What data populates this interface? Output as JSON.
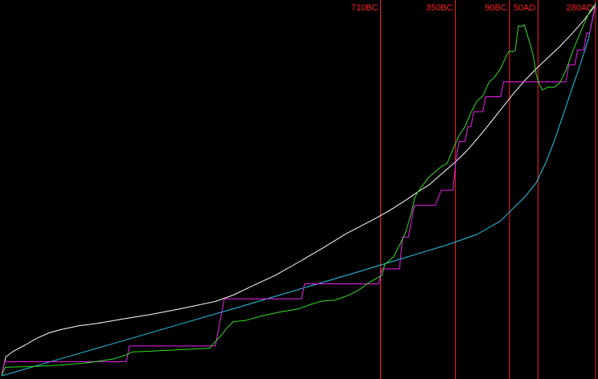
{
  "chart_data": {
    "type": "line",
    "title": "",
    "xlabel": "",
    "ylabel": "",
    "xlim": [
      0,
      100
    ],
    "ylim": [
      0,
      100
    ],
    "grid": false,
    "legend": "none",
    "background": "#000000",
    "markers": [
      {
        "label": "710BC",
        "x": 63.8,
        "color": "#ff2020"
      },
      {
        "label": "350BC",
        "x": 76.4,
        "color": "#ff2020"
      },
      {
        "label": "90BC",
        "x": 85.5,
        "color": "#ff2020"
      },
      {
        "label": "50AD",
        "x": 90.3,
        "color": "#ff2020"
      },
      {
        "label": "280AD",
        "x": 100,
        "color": "#ff2020"
      }
    ],
    "series": [
      {
        "color": "#ffffff",
        "style": "smooth",
        "points": [
          [
            0,
            0.6
          ],
          [
            0.7,
            5.5
          ],
          [
            2,
            7
          ],
          [
            4,
            8.7
          ],
          [
            6,
            10.5
          ],
          [
            8,
            11.9
          ],
          [
            10,
            12.8
          ],
          [
            13,
            13.8
          ],
          [
            16,
            14.4
          ],
          [
            20,
            15.5
          ],
          [
            25,
            16.8
          ],
          [
            30,
            18.3
          ],
          [
            36,
            20.3
          ],
          [
            39,
            22
          ],
          [
            42,
            24.3
          ],
          [
            46,
            27.2
          ],
          [
            50,
            30.8
          ],
          [
            54,
            34.5
          ],
          [
            58,
            38.4
          ],
          [
            62,
            41.7
          ],
          [
            65,
            44.3
          ],
          [
            68,
            47.3
          ],
          [
            70,
            49.5
          ],
          [
            72,
            51.5
          ],
          [
            74,
            54.3
          ],
          [
            76,
            57
          ],
          [
            78,
            60
          ],
          [
            80,
            63.6
          ],
          [
            82,
            67.5
          ],
          [
            84,
            71.5
          ],
          [
            86,
            75.5
          ],
          [
            88,
            79.2
          ],
          [
            90,
            82.5
          ],
          [
            92,
            85.5
          ],
          [
            94,
            88.5
          ],
          [
            96,
            91.8
          ],
          [
            98,
            95.4
          ],
          [
            100,
            99.5
          ]
        ]
      },
      {
        "color": "#22c8e6",
        "style": "smooth",
        "points": [
          [
            0,
            0.4
          ],
          [
            10,
            5
          ],
          [
            20,
            9.6
          ],
          [
            30,
            14.2
          ],
          [
            40,
            18.8
          ],
          [
            50,
            23.5
          ],
          [
            60,
            28.2
          ],
          [
            70,
            33
          ],
          [
            75,
            35.4
          ],
          [
            80,
            38.2
          ],
          [
            84,
            41.8
          ],
          [
            86,
            45
          ],
          [
            88,
            48.1
          ],
          [
            90,
            52
          ],
          [
            91.5,
            57
          ],
          [
            93,
            63
          ],
          [
            94.5,
            70
          ],
          [
            96,
            77
          ],
          [
            97.5,
            84
          ],
          [
            98.8,
            90.5
          ],
          [
            100,
            99.5
          ]
        ]
      },
      {
        "color": "#ee22ee",
        "style": "step",
        "points": [
          [
            0,
            0.5
          ],
          [
            0.5,
            4.2
          ],
          [
            21,
            4.2
          ],
          [
            21.5,
            8.4
          ],
          [
            36,
            8.4
          ],
          [
            36.5,
            12.6
          ],
          [
            37.5,
            21
          ],
          [
            38,
            21
          ],
          [
            38.5,
            21
          ],
          [
            50.5,
            21
          ],
          [
            51,
            25
          ],
          [
            63.5,
            25
          ],
          [
            64,
            29
          ],
          [
            67,
            29
          ],
          [
            67.5,
            37.5
          ],
          [
            68.5,
            37.5
          ],
          [
            69,
            42
          ],
          [
            69.5,
            46
          ],
          [
            73,
            46
          ],
          [
            74,
            50
          ],
          [
            76,
            50
          ],
          [
            76.5,
            58
          ],
          [
            77,
            63
          ],
          [
            78,
            63
          ],
          [
            78.5,
            67
          ],
          [
            79,
            67
          ],
          [
            79.5,
            71
          ],
          [
            81,
            71
          ],
          [
            81.5,
            75
          ],
          [
            84,
            75
          ],
          [
            84.5,
            79
          ],
          [
            85.5,
            79
          ],
          [
            86,
            79
          ],
          [
            86.5,
            79
          ],
          [
            88,
            79
          ],
          [
            88.5,
            79
          ],
          [
            89,
            79
          ],
          [
            89.5,
            79
          ],
          [
            90,
            79
          ],
          [
            90.5,
            79
          ],
          [
            91,
            79
          ],
          [
            91.5,
            79
          ],
          [
            92,
            79
          ],
          [
            92.5,
            79
          ],
          [
            93,
            79
          ],
          [
            93.5,
            79
          ],
          [
            94,
            79
          ],
          [
            94.5,
            79
          ],
          [
            95,
            79
          ],
          [
            95.5,
            83.5
          ],
          [
            96.5,
            83.5
          ],
          [
            97,
            87.5
          ],
          [
            98,
            87.5
          ],
          [
            98.5,
            92
          ],
          [
            99,
            92
          ],
          [
            99.5,
            96
          ],
          [
            100,
            100
          ]
        ]
      },
      {
        "color": "#33dd22",
        "style": "jagged",
        "points": [
          [
            0,
            0.5
          ],
          [
            0.6,
            2.7
          ],
          [
            5,
            2.9
          ],
          [
            10,
            3.3
          ],
          [
            15,
            4
          ],
          [
            19,
            5
          ],
          [
            21,
            6
          ],
          [
            22,
            6.8
          ],
          [
            25,
            7
          ],
          [
            30,
            7.4
          ],
          [
            35,
            7.8
          ],
          [
            36,
            9.6
          ],
          [
            37,
            11.3
          ],
          [
            38,
            13.3
          ],
          [
            39,
            14.9
          ],
          [
            41,
            15.2
          ],
          [
            44,
            16.5
          ],
          [
            47,
            17.5
          ],
          [
            50,
            18.3
          ],
          [
            52,
            19.5
          ],
          [
            54,
            20.4
          ],
          [
            56,
            20.6
          ],
          [
            58,
            21.7
          ],
          [
            60,
            23.2
          ],
          [
            62,
            25.5
          ],
          [
            64,
            27.2
          ],
          [
            64.5,
            30.2
          ],
          [
            66,
            32.2
          ],
          [
            67,
            35.3
          ],
          [
            68,
            38.7
          ],
          [
            68.5,
            41.3
          ],
          [
            69,
            44
          ],
          [
            69.5,
            47.7
          ],
          [
            70,
            49.4
          ],
          [
            71,
            51.6
          ],
          [
            72,
            53.6
          ],
          [
            73,
            55
          ],
          [
            74,
            56.3
          ],
          [
            75,
            57.2
          ],
          [
            76,
            61
          ],
          [
            77,
            64.6
          ],
          [
            78,
            67
          ],
          [
            79,
            70.7
          ],
          [
            80,
            73.8
          ],
          [
            81,
            75.2
          ],
          [
            82,
            78.7
          ],
          [
            83,
            80.3
          ],
          [
            84,
            82.5
          ],
          [
            85,
            86
          ],
          [
            85.5,
            87.3
          ],
          [
            86,
            87
          ],
          [
            86.5,
            87.5
          ],
          [
            87,
            94
          ],
          [
            87.5,
            93.8
          ],
          [
            88,
            94.2
          ],
          [
            89,
            89
          ],
          [
            89.5,
            86
          ],
          [
            90,
            81
          ],
          [
            90.5,
            78.5
          ],
          [
            91,
            76.8
          ],
          [
            92,
            77.6
          ],
          [
            93,
            77.5
          ],
          [
            94,
            78.8
          ],
          [
            95,
            82
          ],
          [
            96,
            86.5
          ],
          [
            97,
            90.5
          ],
          [
            98,
            94.3
          ],
          [
            99,
            97.8
          ],
          [
            100,
            100
          ]
        ]
      }
    ]
  }
}
